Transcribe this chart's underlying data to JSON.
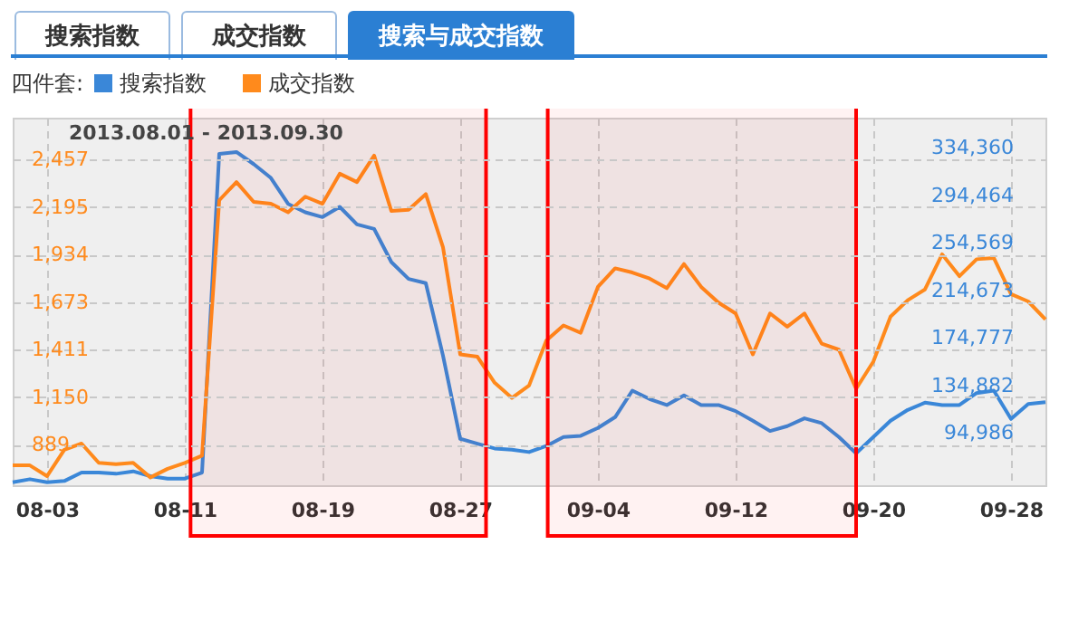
{
  "chart_data": {
    "type": "line",
    "subtitle": "2013.08.01 - 2013.09.30",
    "legend_title": "四件套:",
    "legend": "top left",
    "grid": true,
    "annotations": [
      "搜索指数",
      "成交指数",
      "搜索与成交指数"
    ],
    "x": [
      "2013-08-01",
      "2013-08-02",
      "2013-08-03",
      "2013-08-04",
      "2013-08-05",
      "2013-08-06",
      "2013-08-07",
      "2013-08-08",
      "2013-08-09",
      "2013-08-10",
      "2013-08-11",
      "2013-08-12",
      "2013-08-13",
      "2013-08-14",
      "2013-08-15",
      "2013-08-16",
      "2013-08-17",
      "2013-08-18",
      "2013-08-19",
      "2013-08-20",
      "2013-08-21",
      "2013-08-22",
      "2013-08-23",
      "2013-08-24",
      "2013-08-25",
      "2013-08-26",
      "2013-08-27",
      "2013-08-28",
      "2013-08-29",
      "2013-08-30",
      "2013-08-31",
      "2013-09-01",
      "2013-09-02",
      "2013-09-03",
      "2013-09-04",
      "2013-09-05",
      "2013-09-06",
      "2013-09-07",
      "2013-09-08",
      "2013-09-09",
      "2013-09-10",
      "2013-09-11",
      "2013-09-12",
      "2013-09-13",
      "2013-09-14",
      "2013-09-15",
      "2013-09-16",
      "2013-09-17",
      "2013-09-18",
      "2013-09-19",
      "2013-09-20",
      "2013-09-21",
      "2013-09-22",
      "2013-09-23",
      "2013-09-24",
      "2013-09-25",
      "2013-09-26",
      "2013-09-27",
      "2013-09-28",
      "2013-09-29",
      "2013-09-30"
    ],
    "xlim": [
      "2013-08-01",
      "2013-09-30"
    ],
    "xticks": [
      {
        "value": "2013-08-03",
        "label": "08-03"
      },
      {
        "value": "2013-08-11",
        "label": "08-11"
      },
      {
        "value": "2013-08-19",
        "label": "08-19"
      },
      {
        "value": "2013-08-27",
        "label": "08-27"
      },
      {
        "value": "2013-09-04",
        "label": "09-04"
      },
      {
        "value": "2013-09-12",
        "label": "09-12"
      },
      {
        "value": "2013-09-20",
        "label": "09-20"
      },
      {
        "value": "2013-09-28",
        "label": "09-28"
      }
    ],
    "ylim": [
      667,
      2687
    ],
    "yticks": [
      {
        "value": 889,
        "label": "889"
      },
      {
        "value": 1150,
        "label": "1,150"
      },
      {
        "value": 1411,
        "label": "1,411"
      },
      {
        "value": 1673,
        "label": "1,673"
      },
      {
        "value": 1934,
        "label": "1,934"
      },
      {
        "value": 2195,
        "label": "2,195"
      },
      {
        "value": 2457,
        "label": "2,457"
      }
    ],
    "y2lim": [
      60345,
      368820
    ],
    "y2ticks": [
      {
        "value": 94986,
        "label": "94,986"
      },
      {
        "value": 134882,
        "label": "134,882"
      },
      {
        "value": 174777,
        "label": "174,777"
      },
      {
        "value": 214673,
        "label": "214,673"
      },
      {
        "value": 254569,
        "label": "254,569"
      },
      {
        "value": 294464,
        "label": "294,464"
      },
      {
        "value": 334360,
        "label": "334,360"
      }
    ],
    "series": [
      {
        "name": "搜索指数",
        "color": "#3a87d8",
        "axis": "y2",
        "values": [
          62875,
          65400,
          62875,
          63880,
          70970,
          70970,
          69950,
          71980,
          67930,
          65910,
          65910,
          70970,
          338480,
          339990,
          329880,
          318250,
          296500,
          289420,
          285370,
          293970,
          279300,
          275440,
          247630,
          233470,
          229930,
          169070,
          99280,
          95240,
          91190,
          90180,
          88160,
          93220,
          100800,
          101810,
          108390,
          117490,
          139740,
          132660,
          127600,
          135700,
          127600,
          127600,
          122550,
          114460,
          105860,
          109910,
          116480,
          112430,
          100800,
          87150,
          100800,
          114460,
          123560,
          129630,
          127600,
          127600,
          137710,
          139740,
          115970,
          128610,
          130140
        ]
      },
      {
        "name": "成交指数",
        "color": "#ff8a1c",
        "values": [
          776,
          776,
          717,
          862,
          896,
          790,
          783,
          790,
          710,
          757,
          790,
          829,
          2233,
          2333,
          2224,
          2214,
          2167,
          2253,
          2214,
          2379,
          2333,
          2479,
          2174,
          2181,
          2267,
          1975,
          1386,
          1373,
          1230,
          1147,
          1215,
          1462,
          1545,
          1505,
          1757,
          1859,
          1836,
          1803,
          1750,
          1883,
          1757,
          1671,
          1611,
          1386,
          1611,
          1538,
          1611,
          1445,
          1412,
          1197,
          1346,
          1594,
          1684,
          1743,
          1936,
          1816,
          1909,
          1916,
          1717,
          1677,
          1578
        ]
      }
    ],
    "bands": [
      {
        "axis": "x",
        "from": "2013-08-11T08:00",
        "to": "2013-08-28T12:00",
        "color": "#ff0000"
      },
      {
        "axis": "x",
        "from": "2013-09-01T02:00",
        "to": "2013-09-19T00:00",
        "color": "#ff0000"
      }
    ]
  }
}
